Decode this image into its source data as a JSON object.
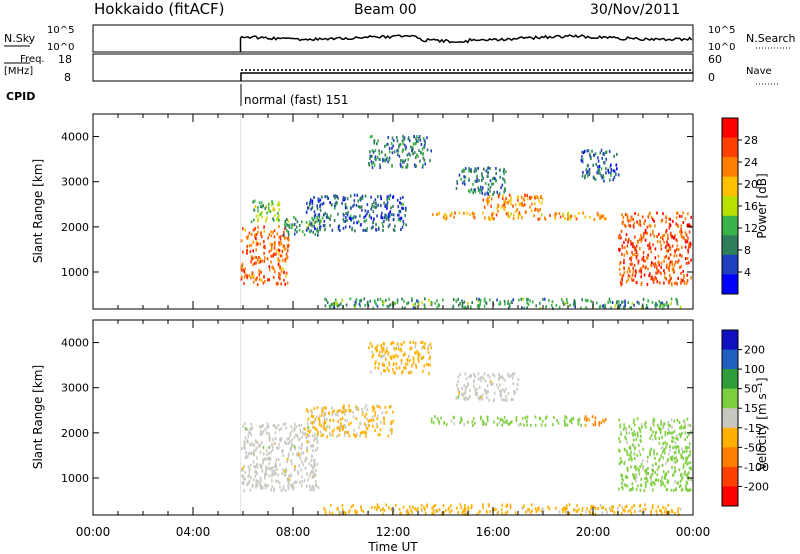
{
  "header": {
    "station": "Hokkaido (fitACF)",
    "beam": "Beam 00",
    "date": "30/Nov/2011"
  },
  "noise_panel": {
    "left_label": "N.Sky",
    "right_label": "N.Search",
    "left_ticks": [
      "10^5",
      "10^0"
    ],
    "right_ticks": [
      "10^5",
      "10^0"
    ]
  },
  "freq_panel": {
    "left_label_1": "Freq.",
    "left_label_2": "[MHz]",
    "right_label": "Nave",
    "left_ticks": [
      "18",
      "8"
    ],
    "right_ticks": [
      "60",
      "0"
    ]
  },
  "cpid": {
    "label": "CPID",
    "value": "normal (fast) 151"
  },
  "colors": {
    "power_scale": [
      "#0000ff",
      "#1f3fbf",
      "#2e7d5b",
      "#3cb34a",
      "#b8e000",
      "#ffc000",
      "#ff8000",
      "#ff4000",
      "#ff0000"
    ],
    "velocity_scale": [
      "#ff0000",
      "#ff4000",
      "#ff8000",
      "#ffb000",
      "#c8c8c0",
      "#7fd040",
      "#2e9d3a",
      "#1f5fbf",
      "#1010c0"
    ],
    "ground_scatter_gray": "#c8c8c0"
  },
  "power_colorbar": {
    "label": "Power [dB]",
    "ticks": [
      "28",
      "24",
      "20",
      "16",
      "12",
      "8",
      "4"
    ]
  },
  "velocity_colorbar": {
    "label": "Velocity [m s⁻¹]",
    "ticks": [
      "200",
      "100",
      "50",
      "15",
      "-15",
      "-50",
      "-100",
      "-200"
    ]
  },
  "chart_data": [
    {
      "type": "heatmap",
      "panel": "power",
      "ylabel": "Slant Range [km]",
      "ylim": [
        180,
        4500
      ],
      "yticks": [
        "4000",
        "3000",
        "2000",
        "1000"
      ],
      "xlim_hours": [
        0,
        24
      ],
      "xticks": [
        "00:00",
        "04:00",
        "08:00",
        "12:00",
        "16:00",
        "20:00",
        "00:00"
      ],
      "data_start_hour": 5.9,
      "regions": [
        {
          "t0": 5.9,
          "t1": 7.8,
          "r0": 700,
          "r1": 2000,
          "value": 26
        },
        {
          "t0": 6.3,
          "t1": 7.5,
          "r0": 2100,
          "r1": 2600,
          "value": 14
        },
        {
          "t0": 7.6,
          "t1": 9.2,
          "r0": 1800,
          "r1": 2200,
          "value": 10
        },
        {
          "t0": 8.5,
          "t1": 12.5,
          "r0": 1900,
          "r1": 2700,
          "value": 6
        },
        {
          "t0": 11.0,
          "t1": 13.5,
          "r0": 3300,
          "r1": 4000,
          "value": 8
        },
        {
          "t0": 13.5,
          "t1": 20.5,
          "r0": 2150,
          "r1": 2300,
          "value": 22
        },
        {
          "t0": 15.5,
          "t1": 18.0,
          "r0": 2300,
          "r1": 2700,
          "value": 24
        },
        {
          "t0": 14.5,
          "t1": 16.5,
          "r0": 2700,
          "r1": 3300,
          "value": 8
        },
        {
          "t0": 19.5,
          "t1": 21.0,
          "r0": 3000,
          "r1": 3700,
          "value": 6
        },
        {
          "t0": 21.0,
          "t1": 23.9,
          "r0": 700,
          "r1": 2300,
          "value": 27
        },
        {
          "t0": 9.2,
          "t1": 23.5,
          "r0": 180,
          "r1": 400,
          "value": 10
        }
      ]
    },
    {
      "type": "heatmap",
      "panel": "velocity",
      "ylabel": "Slant Range [km]",
      "xlabel": "Time UT",
      "ylim": [
        180,
        4500
      ],
      "yticks": [
        "4000",
        "3000",
        "2000",
        "1000"
      ],
      "xlim_hours": [
        0,
        24
      ],
      "xticks": [
        "00:00",
        "04:00",
        "08:00",
        "12:00",
        "16:00",
        "20:00",
        "00:00"
      ],
      "regions": [
        {
          "t0": 5.9,
          "t1": 9.0,
          "r0": 700,
          "r1": 2200,
          "value": 0
        },
        {
          "t0": 8.5,
          "t1": 12.0,
          "r0": 1900,
          "r1": 2600,
          "value": -20
        },
        {
          "t0": 11.0,
          "t1": 13.5,
          "r0": 3300,
          "r1": 4000,
          "value": -30
        },
        {
          "t0": 13.5,
          "t1": 19.5,
          "r0": 2150,
          "r1": 2350,
          "value": 30
        },
        {
          "t0": 19.5,
          "t1": 20.5,
          "r0": 2150,
          "r1": 2350,
          "value": -60
        },
        {
          "t0": 14.5,
          "t1": 17.0,
          "r0": 2700,
          "r1": 3300,
          "value": 0
        },
        {
          "t0": 21.0,
          "t1": 23.9,
          "r0": 700,
          "r1": 2300,
          "value": 30
        },
        {
          "t0": 9.2,
          "t1": 23.5,
          "r0": 180,
          "r1": 400,
          "value": -30
        }
      ]
    }
  ]
}
